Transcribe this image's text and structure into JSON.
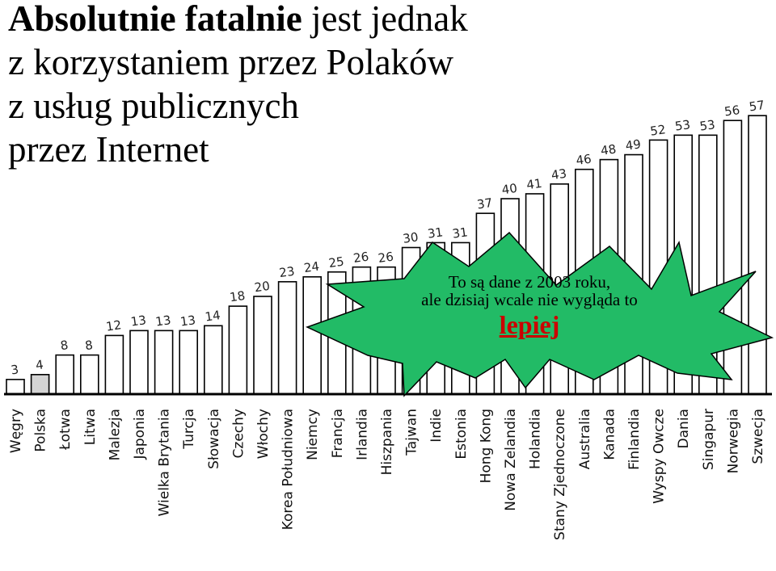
{
  "title": {
    "bold_part": "Absolutnie fatalnie",
    "rest_line1": " jest jednak",
    "line2": "z korzystaniem przez Polaków",
    "line3": "z usług publicznych",
    "line4": "przez Internet"
  },
  "callout": {
    "line1": "To są dane z 2003 roku,",
    "line2": "ale dzisiaj wcale nie wygląda to",
    "emphasis": "lepiej",
    "fill_color": "#22bb66",
    "emphasis_color": "#cc0000"
  },
  "chart_data": {
    "type": "bar",
    "categories": [
      "Węgry",
      "Polska",
      "Łotwa",
      "Litwa",
      "Malezja",
      "Japonia",
      "Wielka Brytania",
      "Turcja",
      "Słowacja",
      "Czechy",
      "Włochy",
      "Korea Południowa",
      "Niemcy",
      "Francja",
      "Irlandia",
      "Hiszpania",
      "Tajwan",
      "Indie",
      "Estonia",
      "Hong Kong",
      "Nowa Zelandia",
      "Holandia",
      "Stany Zjednoczone",
      "Australia",
      "Kanada",
      "Finlandia",
      "Wyspy Owcze",
      "Dania",
      "Singapur",
      "Norwegia",
      "Szwecja"
    ],
    "values": [
      3,
      4,
      8,
      8,
      12,
      13,
      13,
      13,
      14,
      18,
      20,
      23,
      24,
      25,
      26,
      26,
      30,
      31,
      31,
      37,
      40,
      41,
      43,
      46,
      48,
      49,
      52,
      53,
      53,
      56,
      57
    ],
    "highlight_category": "Polska",
    "highlight_color": "#d4d4d4",
    "bar_color": "#ffffff",
    "ylim": [
      0,
      57
    ],
    "title": "",
    "xlabel": "",
    "ylabel": "",
    "grid": false,
    "legend": "none"
  }
}
